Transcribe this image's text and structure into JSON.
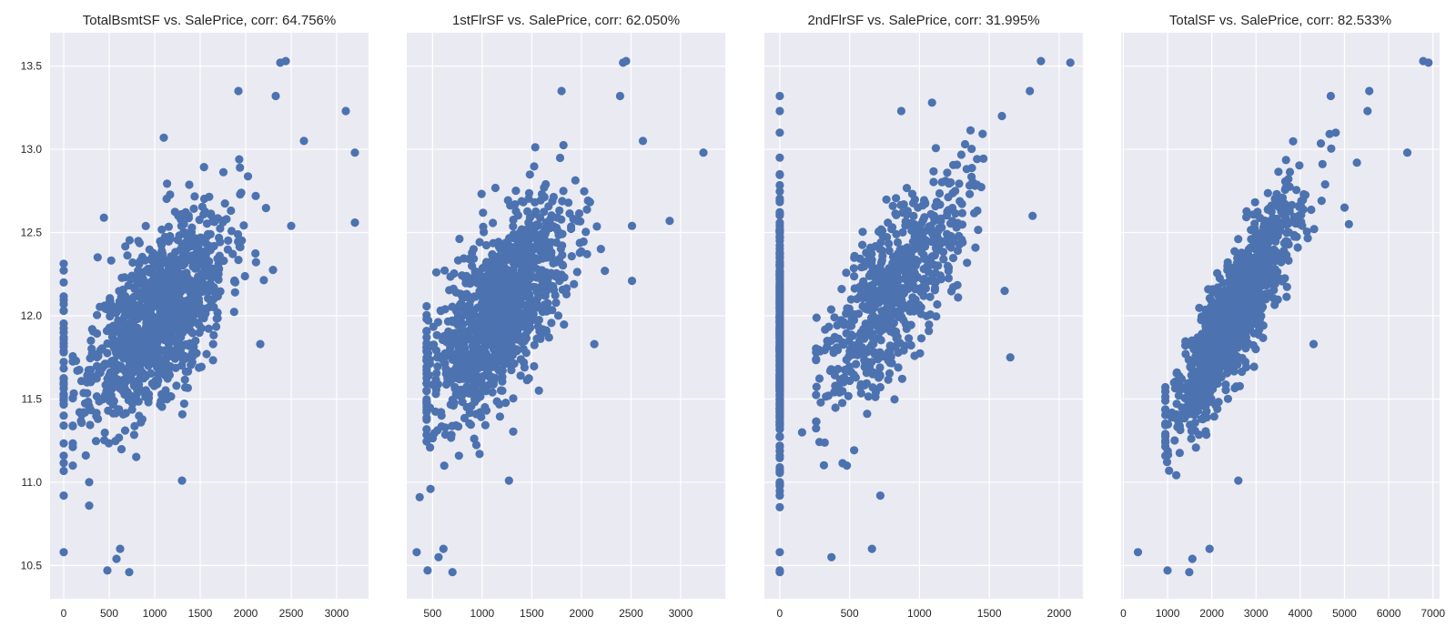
{
  "figure": {
    "background": "#ffffff",
    "axes_background": "#eaeaf2",
    "grid_color": "#ffffff",
    "marker_color": "#4c72b0",
    "shared_y_ticks": [
      "10.5",
      "11.0",
      "11.5",
      "12.0",
      "12.5",
      "13.0",
      "13.5"
    ]
  },
  "chart_data": [
    {
      "type": "scatter",
      "title": "TotalBsmtSF vs. SalePrice, corr: 64.756%",
      "xlabel": "",
      "ylabel": "",
      "xlim": [
        -150,
        3350
      ],
      "ylim": [
        10.3,
        13.7
      ],
      "xticks": [
        0,
        500,
        1000,
        1500,
        2000,
        2500,
        3000
      ],
      "yticks": [
        10.5,
        11.0,
        11.5,
        12.0,
        12.5,
        13.0,
        13.5
      ],
      "grid": true,
      "generator": {
        "seed": 11,
        "n": 1100,
        "x_mean": 1050,
        "x_sd": 380,
        "x_min": 100,
        "x_max": 2300,
        "x_at": 1000,
        "y_at": 11.98,
        "slope": 0.00052,
        "noise": 0.24,
        "zero_count": 37,
        "zero_y_mean": 11.6,
        "zero_y_sd": 0.3
      },
      "points": [
        [
          0,
          10.58
        ],
        [
          0,
          10.92
        ],
        [
          0,
          12.03
        ],
        [
          0,
          12.2
        ],
        [
          0,
          11.87
        ],
        [
          480,
          10.47
        ],
        [
          580,
          10.54
        ],
        [
          620,
          10.6
        ],
        [
          720,
          10.46
        ],
        [
          1300,
          11.01
        ],
        [
          3100,
          13.23
        ],
        [
          3200,
          12.98
        ],
        [
          3200,
          12.56
        ],
        [
          2640,
          13.05
        ],
        [
          2500,
          12.54
        ],
        [
          2380,
          13.52
        ],
        [
          2440,
          13.53
        ],
        [
          2330,
          13.32
        ],
        [
          1920,
          13.35
        ],
        [
          1100,
          13.07
        ],
        [
          2160,
          11.83
        ],
        [
          280,
          11.0
        ],
        [
          280,
          10.86
        ],
        [
          220,
          11.42
        ],
        [
          150,
          11.67
        ]
      ]
    },
    {
      "type": "scatter",
      "title": "1stFlrSF vs. SalePrice, corr: 62.050%",
      "xlabel": "",
      "ylabel": "",
      "xlim": [
        240,
        3450
      ],
      "ylim": [
        10.3,
        13.7
      ],
      "xticks": [
        500,
        1000,
        1500,
        2000,
        2500,
        3000
      ],
      "yticks": [
        10.5,
        11.0,
        11.5,
        12.0,
        12.5,
        13.0,
        13.5
      ],
      "grid": true,
      "generator": {
        "seed": 23,
        "n": 1150,
        "x_mean": 1150,
        "x_sd": 360,
        "x_min": 440,
        "x_max": 2450,
        "x_at": 1100,
        "y_at": 11.98,
        "slope": 0.00055,
        "noise": 0.25,
        "zero_count": 0,
        "zero_y_mean": 0,
        "zero_y_sd": 0
      },
      "points": [
        [
          340,
          10.58
        ],
        [
          450,
          10.47
        ],
        [
          560,
          10.55
        ],
        [
          610,
          10.6
        ],
        [
          700,
          10.46
        ],
        [
          370,
          10.91
        ],
        [
          3230,
          12.98
        ],
        [
          2890,
          12.57
        ],
        [
          2620,
          13.05
        ],
        [
          2510,
          12.54
        ],
        [
          2510,
          12.21
        ],
        [
          2420,
          13.52
        ],
        [
          2450,
          13.53
        ],
        [
          2390,
          13.32
        ],
        [
          1800,
          13.35
        ],
        [
          1270,
          11.01
        ],
        [
          2130,
          11.83
        ]
      ]
    },
    {
      "type": "scatter",
      "title": "2ndFlrSF vs. SalePrice, corr: 31.995%",
      "xlabel": "",
      "ylabel": "",
      "xlim": [
        -110,
        2170
      ],
      "ylim": [
        10.3,
        13.7
      ],
      "xticks": [
        0,
        500,
        1000,
        1500,
        2000
      ],
      "yticks": [
        10.5,
        11.0,
        11.5,
        12.0,
        12.5,
        13.0,
        13.5
      ],
      "grid": true,
      "generator": {
        "seed": 37,
        "n": 640,
        "x_mean": 820,
        "x_sd": 260,
        "x_min": 260,
        "x_max": 1600,
        "x_at": 800,
        "y_at": 12.15,
        "slope": 0.00095,
        "noise": 0.24,
        "zero_count": 330,
        "zero_y_mean": 11.85,
        "zero_y_sd": 0.35
      },
      "points": [
        [
          0,
          10.47
        ],
        [
          0,
          10.46
        ],
        [
          0,
          10.58
        ],
        [
          0,
          13.32
        ],
        [
          0,
          13.23
        ],
        [
          0,
          13.1
        ],
        [
          0,
          10.92
        ],
        [
          0,
          11.0
        ],
        [
          0,
          12.95
        ],
        [
          0,
          12.85
        ],
        [
          370,
          10.55
        ],
        [
          660,
          10.6
        ],
        [
          720,
          10.92
        ],
        [
          1870,
          13.53
        ],
        [
          2080,
          13.52
        ],
        [
          1790,
          13.35
        ],
        [
          1810,
          12.6
        ],
        [
          1610,
          12.15
        ],
        [
          1590,
          13.2
        ],
        [
          1090,
          13.28
        ],
        [
          870,
          13.23
        ],
        [
          1650,
          11.75
        ],
        [
          480,
          11.1
        ],
        [
          160,
          11.3
        ]
      ]
    },
    {
      "type": "scatter",
      "title": "TotalSF vs. SalePrice, corr: 82.533%",
      "xlabel": "",
      "ylabel": "",
      "xlim": [
        -50,
        7150
      ],
      "ylim": [
        10.3,
        13.7
      ],
      "xticks": [
        0,
        1000,
        2000,
        3000,
        4000,
        5000,
        6000,
        7000
      ],
      "yticks": [
        10.5,
        11.0,
        11.5,
        12.0,
        12.5,
        13.0,
        13.5
      ],
      "grid": true,
      "generator": {
        "seed": 53,
        "n": 1200,
        "x_mean": 2550,
        "x_sd": 700,
        "x_min": 950,
        "x_max": 4700,
        "x_at": 2500,
        "y_at": 12.0,
        "slope": 0.00045,
        "noise": 0.17,
        "zero_count": 0,
        "zero_y_mean": 0,
        "zero_y_sd": 0
      },
      "points": [
        [
          330,
          10.58
        ],
        [
          1000,
          10.47
        ],
        [
          1560,
          10.54
        ],
        [
          1490,
          10.46
        ],
        [
          1950,
          10.6
        ],
        [
          2600,
          11.01
        ],
        [
          6420,
          12.98
        ],
        [
          6780,
          13.53
        ],
        [
          6900,
          13.52
        ],
        [
          5560,
          13.35
        ],
        [
          5520,
          13.23
        ],
        [
          4690,
          13.32
        ],
        [
          5280,
          12.92
        ],
        [
          4300,
          11.83
        ],
        [
          5100,
          12.55
        ],
        [
          5000,
          12.65
        ],
        [
          4800,
          13.1
        ]
      ]
    }
  ]
}
